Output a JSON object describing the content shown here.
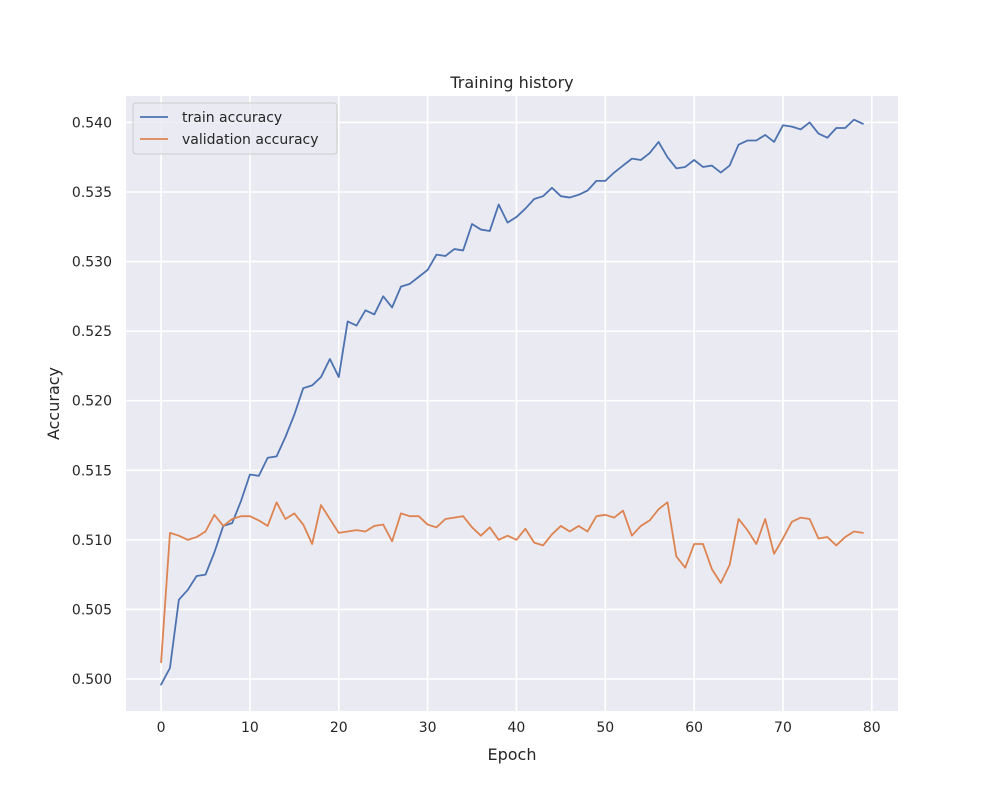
{
  "chart_data": {
    "type": "line",
    "title": "Training history",
    "xlabel": "Epoch",
    "ylabel": "Accuracy",
    "xlim": [
      -3.95,
      82.95
    ],
    "ylim": [
      0.4977,
      0.5419
    ],
    "xticks": [
      0,
      10,
      20,
      30,
      40,
      50,
      60,
      70,
      80
    ],
    "yticks": [
      0.5,
      0.505,
      0.51,
      0.515,
      0.52,
      0.525,
      0.53,
      0.535,
      0.54
    ],
    "xtick_labels": [
      "0",
      "10",
      "20",
      "30",
      "40",
      "50",
      "60",
      "70",
      "80"
    ],
    "ytick_labels": [
      "0.500",
      "0.505",
      "0.510",
      "0.515",
      "0.520",
      "0.525",
      "0.530",
      "0.535",
      "0.540"
    ],
    "grid": true,
    "legend_position": "top-left",
    "background": "#eaeaf2",
    "x": [
      0,
      1,
      2,
      3,
      4,
      5,
      6,
      7,
      8,
      9,
      10,
      11,
      12,
      13,
      14,
      15,
      16,
      17,
      18,
      19,
      20,
      21,
      22,
      23,
      24,
      25,
      26,
      27,
      28,
      29,
      30,
      31,
      32,
      33,
      34,
      35,
      36,
      37,
      38,
      39,
      40,
      41,
      42,
      43,
      44,
      45,
      46,
      47,
      48,
      49,
      50,
      51,
      52,
      53,
      54,
      55,
      56,
      57,
      58,
      59,
      60,
      61,
      62,
      63,
      64,
      65,
      66,
      67,
      68,
      69,
      70,
      71,
      72,
      73,
      74,
      75,
      76,
      77,
      78,
      79
    ],
    "series": [
      {
        "name": "train accuracy",
        "color": "#4c72b0",
        "values": [
          0.4996,
          0.5008,
          0.5057,
          0.5064,
          0.5074,
          0.5075,
          0.5091,
          0.511,
          0.5112,
          0.5128,
          0.5147,
          0.5146,
          0.5159,
          0.516,
          0.5174,
          0.519,
          0.5209,
          0.5211,
          0.5217,
          0.523,
          0.5217,
          0.5257,
          0.5254,
          0.5265,
          0.5262,
          0.5275,
          0.5267,
          0.5282,
          0.5284,
          0.5289,
          0.5294,
          0.5305,
          0.5304,
          0.5309,
          0.5308,
          0.5327,
          0.5323,
          0.5322,
          0.5341,
          0.5328,
          0.5332,
          0.5338,
          0.5345,
          0.5347,
          0.5353,
          0.5347,
          0.5346,
          0.5348,
          0.5351,
          0.5358,
          0.5358,
          0.5364,
          0.5369,
          0.5374,
          0.5373,
          0.5378,
          0.5386,
          0.5375,
          0.5367,
          0.5368,
          0.5373,
          0.5368,
          0.5369,
          0.5364,
          0.5369,
          0.5384,
          0.5387,
          0.5387,
          0.5391,
          0.5386,
          0.5398,
          0.5397,
          0.5395,
          0.54,
          0.5392,
          0.5389,
          0.5396,
          0.5396,
          0.5402,
          0.5399
        ]
      },
      {
        "name": "validation accuracy",
        "color": "#dd8452",
        "values": [
          0.5012,
          0.5105,
          0.5103,
          0.51,
          0.5102,
          0.5106,
          0.5118,
          0.511,
          0.5115,
          0.5117,
          0.5117,
          0.5114,
          0.511,
          0.5127,
          0.5115,
          0.5119,
          0.5111,
          0.5097,
          0.5125,
          0.5115,
          0.5105,
          0.5106,
          0.5107,
          0.5106,
          0.511,
          0.5111,
          0.5099,
          0.5119,
          0.5117,
          0.5117,
          0.5111,
          0.5109,
          0.5115,
          0.5116,
          0.5117,
          0.5109,
          0.5103,
          0.5109,
          0.51,
          0.5103,
          0.51,
          0.5108,
          0.5098,
          0.5096,
          0.5104,
          0.511,
          0.5106,
          0.511,
          0.5106,
          0.5117,
          0.5118,
          0.5116,
          0.5121,
          0.5103,
          0.511,
          0.5114,
          0.5122,
          0.5127,
          0.5088,
          0.508,
          0.5097,
          0.5097,
          0.5079,
          0.5069,
          0.5082,
          0.5115,
          0.5107,
          0.5097,
          0.5115,
          0.509,
          0.5101,
          0.5113,
          0.5116,
          0.5115,
          0.5101,
          0.5102,
          0.5096,
          0.5102,
          0.5106,
          0.5105
        ]
      }
    ]
  }
}
